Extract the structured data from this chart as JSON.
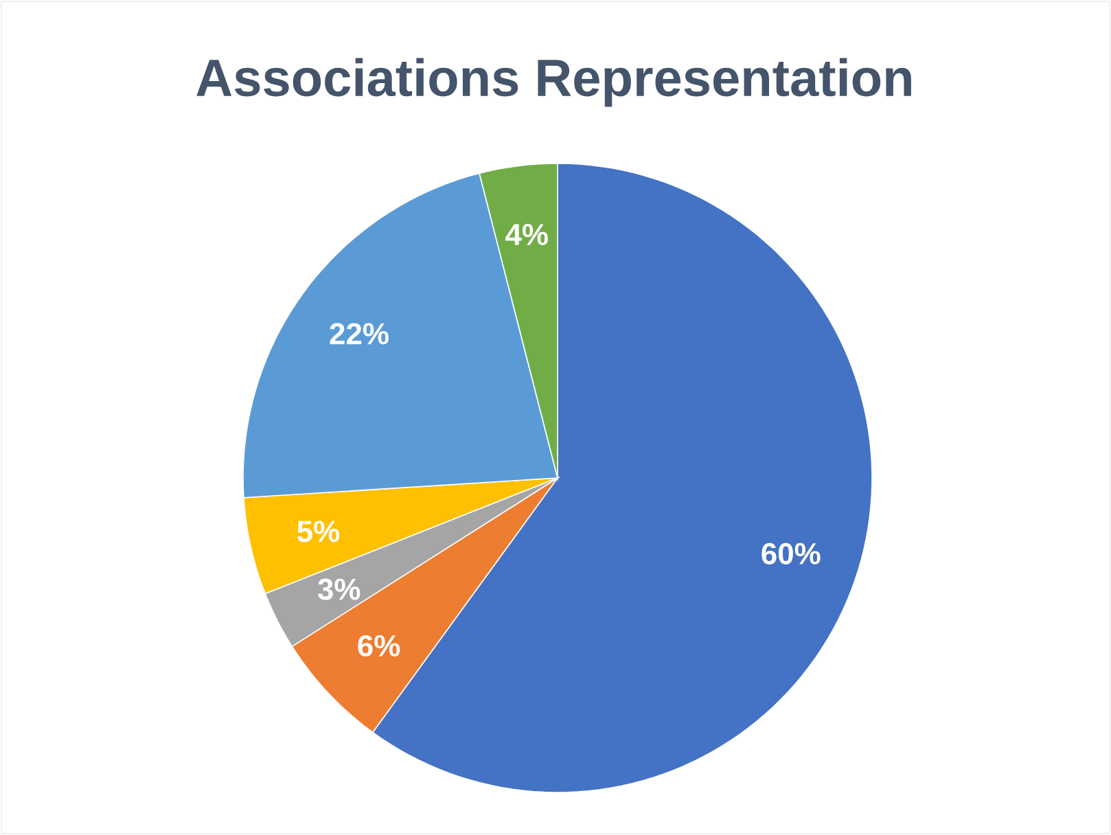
{
  "chart_data": {
    "type": "pie",
    "title": "Associations Representation",
    "categories": [
      null,
      null,
      null,
      null,
      null,
      null
    ],
    "values": [
      60,
      6,
      3,
      5,
      22,
      4
    ],
    "value_labels": [
      "60%",
      "6%",
      "3%",
      "5%",
      "22%",
      "4%"
    ],
    "colors": [
      "#4472c4",
      "#ed7d31",
      "#a5a5a5",
      "#ffc000",
      "#5b9bd5",
      "#70ad47"
    ]
  }
}
